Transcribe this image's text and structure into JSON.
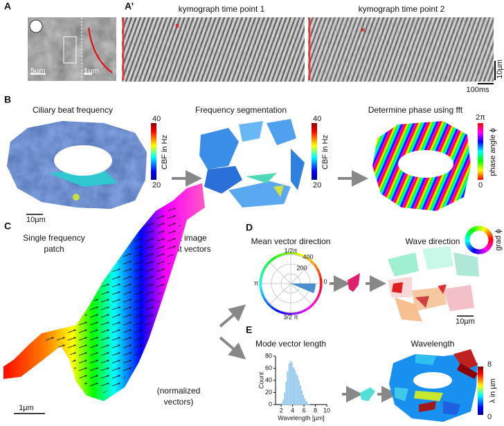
{
  "panels": {
    "A": {
      "label": "A",
      "scale_large": "5µm",
      "scale_small": "1µm"
    },
    "A_prime": {
      "label": "A’",
      "kymograph_1": "kymograph time point 1",
      "kymograph_2": "kymograph time point 2",
      "scale_space": "10µm",
      "scale_time": "100ms"
    },
    "B": {
      "label": "B",
      "titles": [
        "Ciliary beat frequency",
        "Frequency segmentation",
        "Determine phase using fft"
      ],
      "cbf_colorbar": {
        "max": "40",
        "min": "20",
        "label": "CBF in Hz"
      },
      "phase_colorbar": {
        "max": "2π",
        "min": "0",
        "label": "phase angle ϕ"
      },
      "scale": "10µm"
    },
    "C": {
      "label": "C",
      "title_left": [
        "Single frequency",
        "patch"
      ],
      "title_right": [
        "Extract image",
        "gradient vectors"
      ],
      "scale": "1µm",
      "note": [
        "(normalized",
        "vectors)"
      ]
    },
    "D": {
      "label": "D",
      "title_left": "Mean vector direction",
      "polar_labels": {
        "top": "1/2π",
        "r_outer": "400",
        "r_inner": "200",
        "left": "π",
        "right": "0",
        "bottom": "3/2 π"
      },
      "title_right": "Wave direction",
      "wheel_label": "grad ϕ",
      "scale": "10µm"
    },
    "E": {
      "label": "E",
      "title_left": "Mode vector length",
      "title_right": "Wavelength",
      "histogram": {
        "xlabel": "Wavelength [µm]",
        "ylabel": "Count",
        "xlim": [
          1,
          10
        ],
        "ylim": [
          0,
          80
        ],
        "xticks": [
          2,
          4,
          6,
          8,
          10
        ],
        "yticks": [
          0,
          20,
          40,
          60,
          80
        ],
        "bins": [
          2,
          2.25,
          2.5,
          2.75,
          3,
          3.25,
          3.5,
          3.75,
          4,
          4.25,
          4.5,
          4.75,
          5,
          5.25,
          5.5,
          5.75,
          6,
          6.25,
          6.5,
          6.75,
          7
        ],
        "counts": [
          3,
          8,
          20,
          38,
          55,
          68,
          72,
          70,
          62,
          58,
          52,
          48,
          40,
          32,
          24,
          16,
          10,
          6,
          3,
          1
        ]
      },
      "colorbar": {
        "max": "8",
        "min": "0",
        "label": "λ in µm"
      }
    }
  }
}
